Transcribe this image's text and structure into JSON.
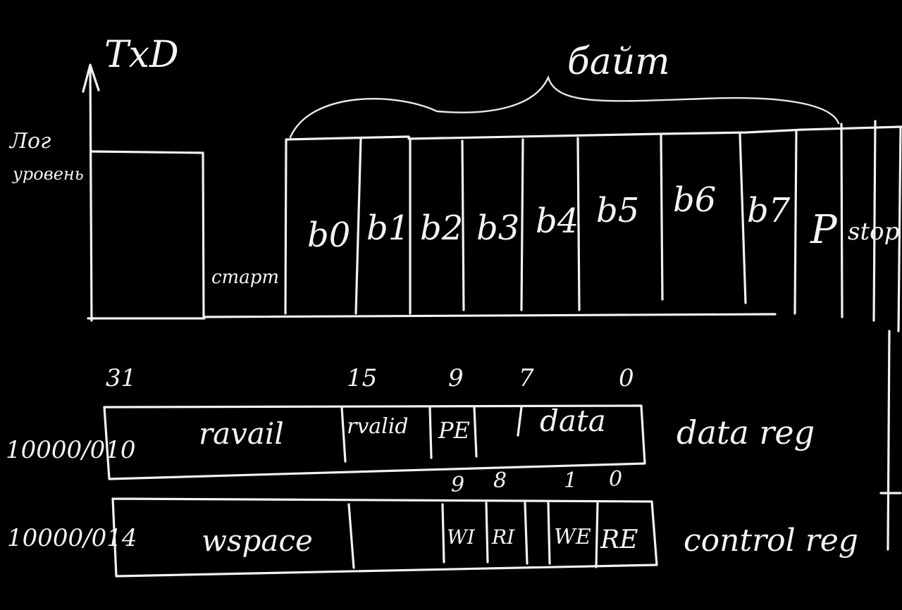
{
  "timing": {
    "signal_name": "TxD",
    "y_axis_label_line1": "Лог",
    "y_axis_label_line2": "уровень",
    "start_label": "старт",
    "byte_label": "байт",
    "bits": [
      "b0",
      "b1",
      "b2",
      "b3",
      "b4",
      "b5",
      "b6",
      "b7",
      "P",
      "stop"
    ]
  },
  "data_reg": {
    "address": "10000/010",
    "bit_positions": [
      "31",
      "15",
      "9",
      "7",
      "0"
    ],
    "fields": [
      "ravail",
      "rvalid",
      "PE",
      "data"
    ],
    "name": "data reg"
  },
  "control_reg": {
    "address": "10000/014",
    "bit_positions": [
      "9",
      "8",
      "1",
      "0"
    ],
    "fields": [
      "wspace",
      "WI",
      "RI",
      "WE",
      "RE"
    ],
    "name": "control reg"
  },
  "colors": {
    "board": "#000000",
    "chalk": "#f2f2f2"
  }
}
